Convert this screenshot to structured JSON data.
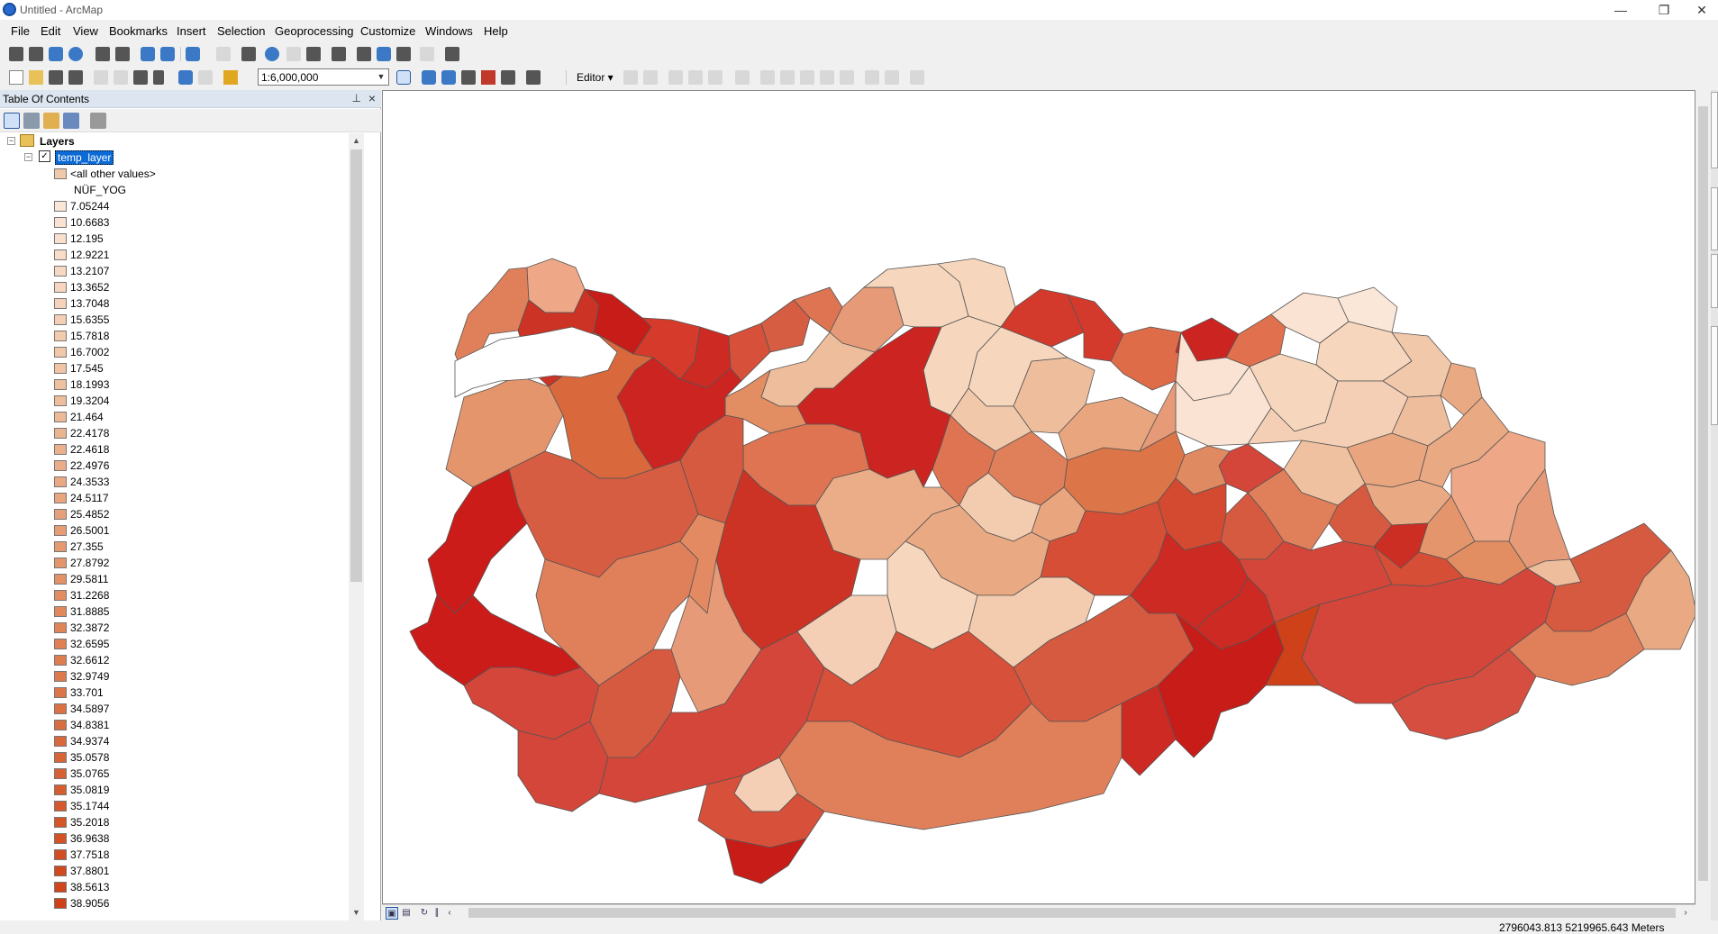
{
  "window": {
    "title": "Untitled - ArcMap",
    "minimize": "—",
    "restore": "❐",
    "close": "✕"
  },
  "menu": [
    "File",
    "Edit",
    "View",
    "Bookmarks",
    "Insert",
    "Selection",
    "Geoprocessing",
    "Customize",
    "Windows",
    "Help"
  ],
  "toolbar": {
    "scale_value": "1:6,000,000",
    "editor_label": "Editor ▾"
  },
  "toc": {
    "title": "Table Of Contents",
    "root_label": "Layers",
    "layer_name": "temp_layer",
    "layer_checked": true,
    "other_values_label": "<all other values>",
    "field_heading": "NÜF_YOG",
    "legend": [
      {
        "label": "7.05244",
        "color": "#fbe7d8"
      },
      {
        "label": "10.6683",
        "color": "#fae3d2"
      },
      {
        "label": "12.195",
        "color": "#f9dfcd"
      },
      {
        "label": "12.9221",
        "color": "#f8dcc8"
      },
      {
        "label": "13.2107",
        "color": "#f7d9c3"
      },
      {
        "label": "13.3652",
        "color": "#f6d6bf"
      },
      {
        "label": "13.7048",
        "color": "#f5d2ba"
      },
      {
        "label": "15.6355",
        "color": "#f4cfb5"
      },
      {
        "label": "15.7818",
        "color": "#f3ccb0"
      },
      {
        "label": "16.7002",
        "color": "#f2c8ab"
      },
      {
        "label": "17.545",
        "color": "#f1c4a6"
      },
      {
        "label": "18.1993",
        "color": "#f0c1a1"
      },
      {
        "label": "19.3204",
        "color": "#eebd9c"
      },
      {
        "label": "21.464",
        "color": "#edb997"
      },
      {
        "label": "22.4178",
        "color": "#ecb592"
      },
      {
        "label": "22.4618",
        "color": "#ebb18d"
      },
      {
        "label": "22.4976",
        "color": "#eaad88"
      },
      {
        "label": "24.3533",
        "color": "#e9a983"
      },
      {
        "label": "24.5117",
        "color": "#e8a57e"
      },
      {
        "label": "25.4852",
        "color": "#e7a17a"
      },
      {
        "label": "26.5001",
        "color": "#e69d75"
      },
      {
        "label": "27.355",
        "color": "#e59970"
      },
      {
        "label": "27.8792",
        "color": "#e4956b"
      },
      {
        "label": "29.5811",
        "color": "#e39166"
      },
      {
        "label": "31.2268",
        "color": "#e28d62"
      },
      {
        "label": "31.8885",
        "color": "#e1895d"
      },
      {
        "label": "32.3872",
        "color": "#e08558"
      },
      {
        "label": "32.6595",
        "color": "#df8154"
      },
      {
        "label": "32.6612",
        "color": "#de7d50"
      },
      {
        "label": "32.9749",
        "color": "#dd794c"
      },
      {
        "label": "33.701",
        "color": "#dc7548"
      },
      {
        "label": "34.5897",
        "color": "#db7144"
      },
      {
        "label": "34.8381",
        "color": "#da6d40"
      },
      {
        "label": "34.9374",
        "color": "#d9693c"
      },
      {
        "label": "35.0578",
        "color": "#d86538"
      },
      {
        "label": "35.0765",
        "color": "#d76134"
      },
      {
        "label": "35.0819",
        "color": "#d65d30"
      },
      {
        "label": "35.1744",
        "color": "#d5592c"
      },
      {
        "label": "35.2018",
        "color": "#d45528"
      },
      {
        "label": "36.9638",
        "color": "#d35124"
      },
      {
        "label": "37.7518",
        "color": "#d24d21"
      },
      {
        "label": "37.8801",
        "color": "#d1491e"
      },
      {
        "label": "38.5613",
        "color": "#d0451b"
      },
      {
        "label": "38.9056",
        "color": "#cf4118"
      }
    ]
  },
  "status": {
    "coordinates": "2796043.813  5219965.643 Meters"
  }
}
